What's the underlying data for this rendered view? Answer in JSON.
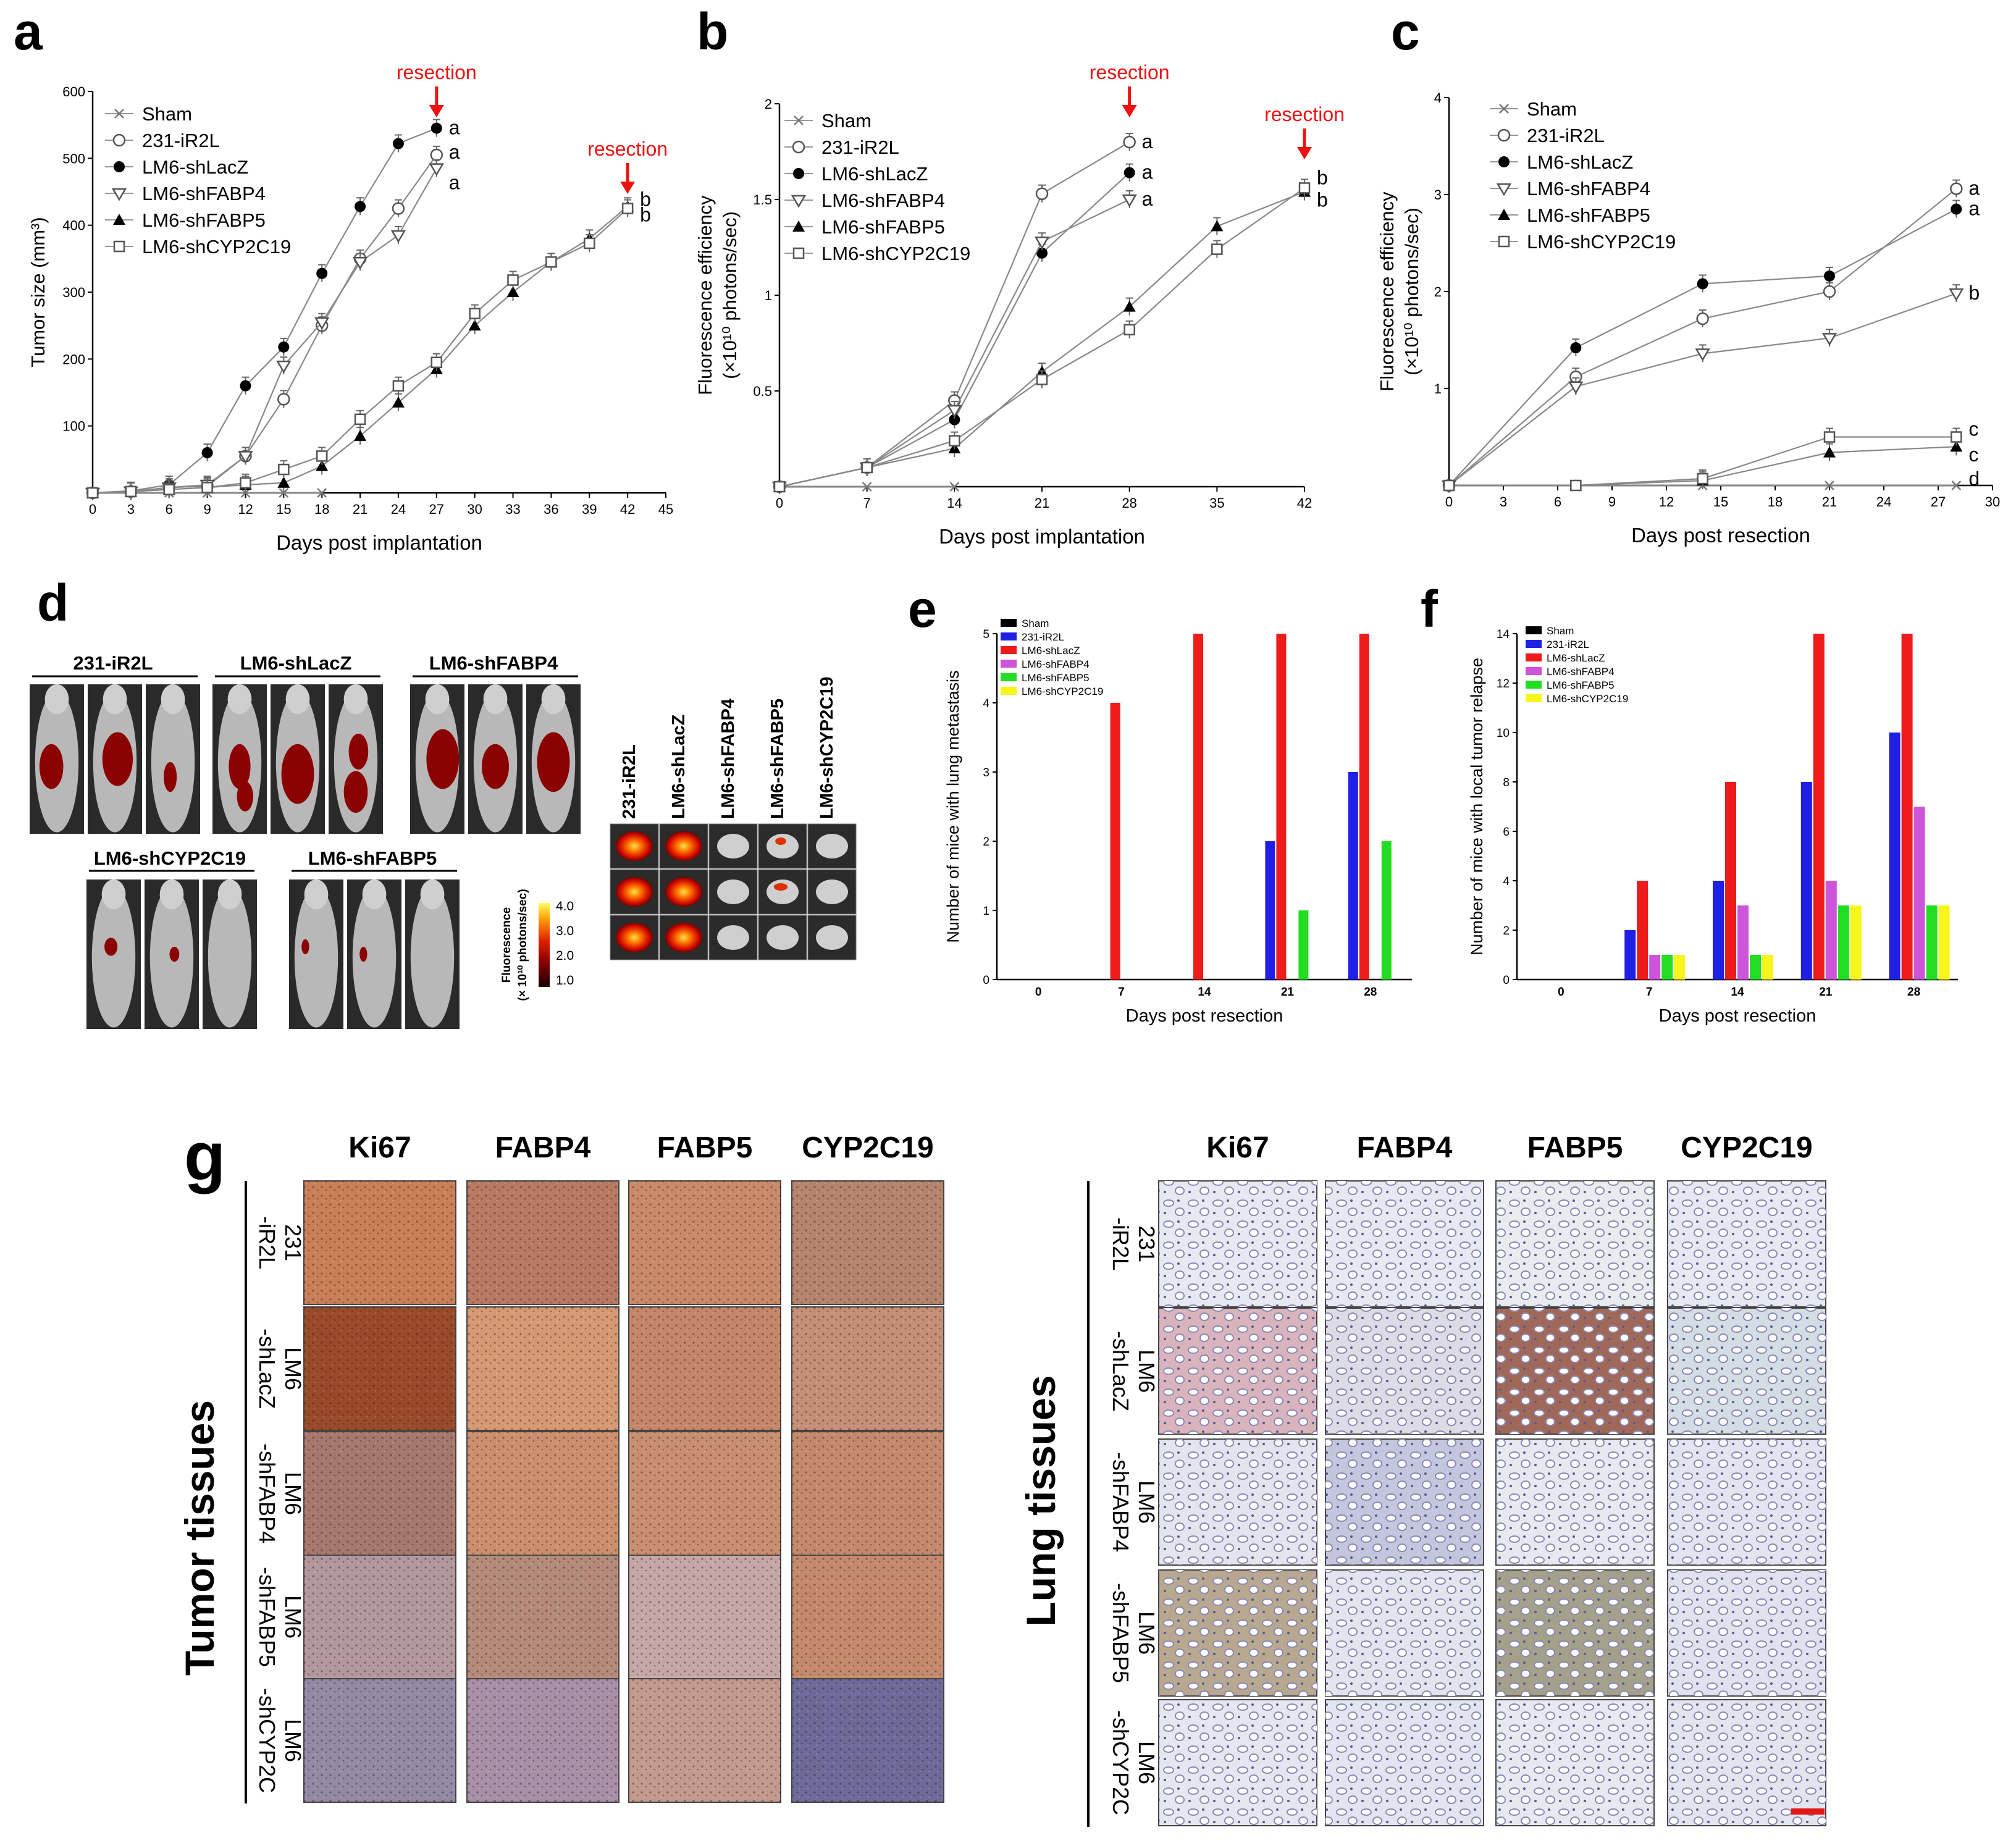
{
  "figure": {
    "panel_letters": [
      "a",
      "b",
      "c",
      "d",
      "e",
      "f",
      "g"
    ],
    "resection_label": "resection",
    "legend_groups": [
      "Sham",
      "231-iR2L",
      "LM6-shLacZ",
      "LM6-shFABP4",
      "LM6-shFABP5",
      "LM6-shCYP2C19"
    ],
    "d": {
      "mice_groups": [
        "231-iR2L",
        "LM6-shLacZ",
        "LM6-shFABP4",
        "LM6-shCYP2C19",
        "LM6-shFABP5"
      ],
      "lung_columns": [
        "231-iR2L",
        "LM6-shLacZ",
        "LM6-shFABP4",
        "LM6-shFABP5",
        "LM6-shCYP2C19"
      ],
      "scale_title": "Fluorescence",
      "scale_unit": "(× 10¹⁰ photons/sec)",
      "scale_ticks": [
        "4.0",
        "3.0",
        "2.0",
        "1.0"
      ]
    },
    "g": {
      "columns": [
        "Ki67",
        "FABP4",
        "FABP5",
        "CYP2C19"
      ],
      "rows_tumor": [
        [
          "231",
          "-iR2L"
        ],
        [
          "LM6",
          "-shLacZ"
        ],
        [
          "LM6",
          "-shFABP4"
        ],
        [
          "LM6",
          "-shFABP5"
        ],
        [
          "LM6",
          "-shCYP2C"
        ]
      ],
      "rows_lung": [
        [
          "231",
          "-iR2L"
        ],
        [
          "LM6",
          "-shLacZ"
        ],
        [
          "LM6",
          "-shFABP4"
        ],
        [
          "LM6",
          "-shFABP5"
        ],
        [
          "LM6",
          "-shCYP2C"
        ]
      ],
      "tumor_label": "Tumor tissues",
      "lung_label": "Lung tissues"
    }
  },
  "chart_data": [
    {
      "panel": "a",
      "type": "line",
      "xlabel": "Days post implantation",
      "ylabel": "Tumor size (mm³)",
      "xlim": [
        0,
        45
      ],
      "ylim": [
        0,
        600
      ],
      "xticks": [
        0,
        3,
        6,
        9,
        12,
        15,
        18,
        21,
        24,
        27,
        30,
        33,
        36,
        39,
        42,
        45
      ],
      "yticks": [
        100,
        200,
        300,
        400,
        500,
        600
      ],
      "annotations": [
        {
          "text": "resection",
          "x": 27
        },
        {
          "text": "resection",
          "x": 42
        }
      ],
      "series": [
        {
          "name": "Sham",
          "x": [
            0,
            3,
            6,
            9,
            12,
            15,
            18
          ],
          "values": [
            0,
            0,
            0,
            0,
            0,
            0,
            0
          ]
        },
        {
          "name": "231-iR2L",
          "x": [
            0,
            3,
            6,
            9,
            12,
            15,
            18,
            21,
            24,
            27
          ],
          "values": [
            0,
            2,
            8,
            10,
            55,
            140,
            250,
            350,
            425,
            505
          ],
          "end_label": "a"
        },
        {
          "name": "LM6-shLacZ",
          "x": [
            0,
            3,
            6,
            9,
            12,
            15,
            18,
            21,
            24,
            27
          ],
          "values": [
            0,
            3,
            12,
            60,
            160,
            218,
            328,
            428,
            522,
            545
          ],
          "end_label": "a"
        },
        {
          "name": "LM6-shFABP4",
          "x": [
            0,
            3,
            6,
            9,
            12,
            15,
            18,
            21,
            24,
            27
          ],
          "values": [
            0,
            2,
            8,
            12,
            55,
            190,
            255,
            345,
            385,
            485
          ],
          "end_label": "a"
        },
        {
          "name": "LM6-shFABP5",
          "x": [
            0,
            3,
            6,
            9,
            12,
            15,
            18,
            21,
            24,
            27,
            30,
            33,
            36,
            39,
            42
          ],
          "values": [
            0,
            2,
            5,
            8,
            12,
            15,
            40,
            85,
            135,
            185,
            250,
            300,
            345,
            380,
            428
          ],
          "end_label": "b"
        },
        {
          "name": "LM6-shCYP2C19",
          "x": [
            0,
            3,
            6,
            9,
            12,
            15,
            18,
            21,
            24,
            27,
            30,
            33,
            36,
            39,
            42
          ],
          "values": [
            0,
            2,
            5,
            8,
            15,
            35,
            55,
            110,
            160,
            195,
            268,
            318,
            345,
            373,
            425
          ],
          "end_label": "b"
        }
      ]
    },
    {
      "panel": "b",
      "type": "line",
      "xlabel": "Days post implantation",
      "ylabel": "Fluorescence efficiency",
      "ylabel2": "(×10¹⁰ photons/sec)",
      "xlim": [
        0,
        42
      ],
      "ylim": [
        0,
        2.0
      ],
      "xticks": [
        0,
        7,
        14,
        21,
        28,
        35,
        42
      ],
      "yticks": [
        0.5,
        1.0,
        1.5,
        2.0
      ],
      "annotations": [
        {
          "text": "resection",
          "x": 28
        },
        {
          "text": "resection",
          "x": 42
        }
      ],
      "series": [
        {
          "name": "Sham",
          "x": [
            0,
            7,
            14
          ],
          "values": [
            0,
            0,
            0
          ]
        },
        {
          "name": "231-iR2L",
          "x": [
            0,
            7,
            14,
            21,
            28
          ],
          "values": [
            0,
            0.1,
            0.45,
            1.53,
            1.8
          ],
          "end_label": "a"
        },
        {
          "name": "LM6-shLacZ",
          "x": [
            0,
            7,
            14,
            21,
            28
          ],
          "values": [
            0,
            0.1,
            0.35,
            1.22,
            1.64
          ],
          "end_label": "a"
        },
        {
          "name": "LM6-shFABP4",
          "x": [
            0,
            7,
            14,
            21,
            28
          ],
          "values": [
            0,
            0.1,
            0.4,
            1.28,
            1.5
          ],
          "end_label": "a"
        },
        {
          "name": "LM6-shFABP5",
          "x": [
            0,
            7,
            14,
            21,
            28,
            35,
            42
          ],
          "values": [
            0,
            0.1,
            0.2,
            0.6,
            0.94,
            1.36,
            1.54
          ],
          "end_label": "b"
        },
        {
          "name": "LM6-shCYP2C19",
          "x": [
            0,
            7,
            14,
            21,
            28,
            35,
            42
          ],
          "values": [
            0,
            0.1,
            0.24,
            0.56,
            0.82,
            1.24,
            1.56
          ],
          "end_label": "b"
        }
      ]
    },
    {
      "panel": "c",
      "type": "line",
      "xlabel": "Days post resection",
      "ylabel": "Fluorescence efficiency",
      "ylabel2": "(×10¹⁰ photons/sec)",
      "xlim": [
        0,
        30
      ],
      "ylim": [
        0,
        4
      ],
      "xticks": [
        0,
        3,
        6,
        9,
        12,
        15,
        18,
        21,
        24,
        27,
        30
      ],
      "yticks": [
        1,
        2,
        3,
        4
      ],
      "series": [
        {
          "name": "Sham",
          "x": [
            0,
            7,
            14,
            21,
            28
          ],
          "values": [
            0,
            0,
            0,
            0,
            0
          ],
          "end_label": "d"
        },
        {
          "name": "231-iR2L",
          "x": [
            0,
            7,
            14,
            21,
            28
          ],
          "values": [
            0,
            1.12,
            1.72,
            2.0,
            3.06
          ],
          "end_label": "a"
        },
        {
          "name": "LM6-shLacZ",
          "x": [
            0,
            7,
            14,
            21,
            28
          ],
          "values": [
            0,
            1.42,
            2.08,
            2.16,
            2.85
          ],
          "end_label": "a"
        },
        {
          "name": "LM6-shFABP4",
          "x": [
            0,
            7,
            14,
            21,
            28
          ],
          "values": [
            0,
            1.02,
            1.36,
            1.52,
            1.98
          ],
          "end_label": "b"
        },
        {
          "name": "LM6-shFABP5",
          "x": [
            0,
            7,
            14,
            21,
            28
          ],
          "values": [
            0,
            0,
            0.05,
            0.34,
            0.4
          ],
          "end_label": "c"
        },
        {
          "name": "LM6-shCYP2C19",
          "x": [
            0,
            7,
            14,
            21,
            28
          ],
          "values": [
            0,
            0,
            0.07,
            0.5,
            0.5
          ],
          "end_label": "c"
        }
      ]
    },
    {
      "panel": "e",
      "type": "bar",
      "xlabel": "Days post resection",
      "ylabel": "Number of mice with lung metastasis",
      "categories": [
        "0",
        "7",
        "14",
        "21",
        "28"
      ],
      "ylim": [
        0,
        5
      ],
      "yticks": [
        0,
        1,
        2,
        3,
        4,
        5
      ],
      "series": [
        {
          "name": "Sham",
          "color": "#000000",
          "values": [
            0,
            0,
            0,
            0,
            0
          ]
        },
        {
          "name": "231-iR2L",
          "color": "#1f1fe6",
          "values": [
            0,
            0,
            0,
            2,
            3
          ]
        },
        {
          "name": "LM6-shLacZ",
          "color": "#ee1b1b",
          "values": [
            0,
            4,
            5,
            5,
            5
          ]
        },
        {
          "name": "LM6-shFABP4",
          "color": "#cc55d9",
          "values": [
            0,
            0,
            0,
            0,
            0
          ]
        },
        {
          "name": "LM6-shFABP5",
          "color": "#22dd22",
          "values": [
            0,
            0,
            0,
            1,
            2
          ]
        },
        {
          "name": "LM6-shCYP2C19",
          "color": "#f6f61a",
          "values": [
            0,
            0,
            0,
            0,
            0
          ]
        }
      ]
    },
    {
      "panel": "f",
      "type": "bar",
      "xlabel": "Days post resection",
      "ylabel": "Number of mice with local tumor relapse",
      "categories": [
        "0",
        "7",
        "14",
        "21",
        "28"
      ],
      "ylim": [
        0,
        14
      ],
      "yticks": [
        0,
        2,
        4,
        6,
        8,
        10,
        12,
        14
      ],
      "series": [
        {
          "name": "Sham",
          "color": "#000000",
          "values": [
            0,
            0,
            0,
            0,
            0
          ]
        },
        {
          "name": "231-iR2L",
          "color": "#1f1fe6",
          "values": [
            0,
            2,
            4,
            8,
            10
          ]
        },
        {
          "name": "LM6-shLacZ",
          "color": "#ee1b1b",
          "values": [
            0,
            4,
            8,
            14,
            14
          ]
        },
        {
          "name": "LM6-shFABP4",
          "color": "#cc55d9",
          "values": [
            0,
            1,
            3,
            4,
            7
          ]
        },
        {
          "name": "LM6-shFABP5",
          "color": "#22dd22",
          "values": [
            0,
            1,
            1,
            3,
            3
          ]
        },
        {
          "name": "LM6-shCYP2C19",
          "color": "#f6f61a",
          "values": [
            0,
            1,
            1,
            3,
            3
          ]
        }
      ]
    }
  ]
}
